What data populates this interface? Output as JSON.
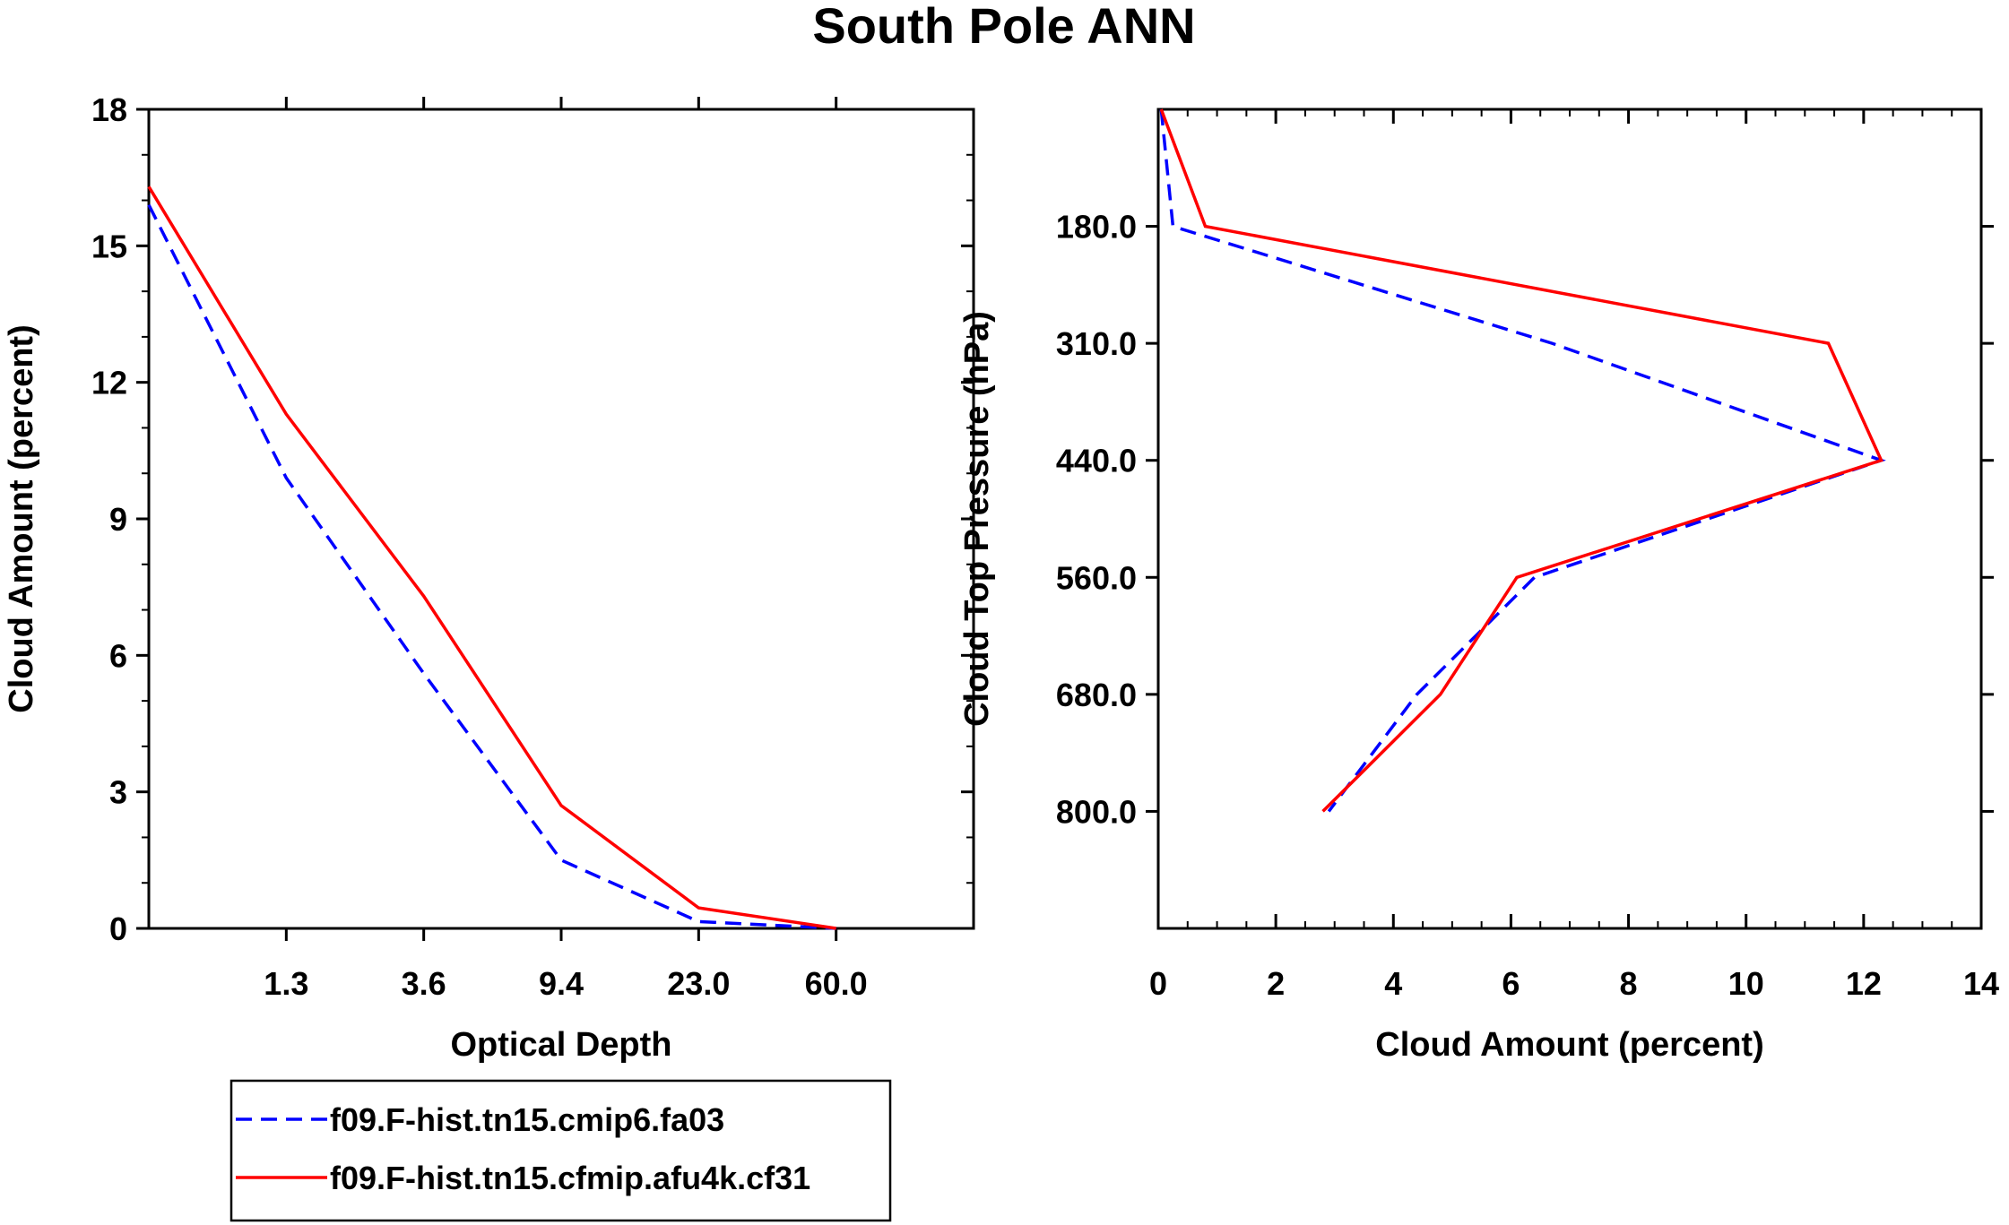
{
  "title": "South Pole ANN",
  "legend": {
    "entries": [
      {
        "label": "f09.F-hist.tn15.cmip6.fa03",
        "color": "#0000ff",
        "style": "dashed"
      },
      {
        "label": "f09.F-hist.tn15.cfmip.afu4k.cf31",
        "color": "#ff0000",
        "style": "solid"
      }
    ]
  },
  "chart_data": [
    {
      "type": "line",
      "name": "optical-depth-panel",
      "xlabel": "Optical Depth",
      "ylabel": "Cloud Amount (percent)",
      "x_ticklabels": [
        "1.3",
        "3.6",
        "9.4",
        "23.0",
        "60.0"
      ],
      "y_ticklabels": [
        "0",
        "3",
        "6",
        "9",
        "12",
        "15",
        "18"
      ],
      "x_bins": [
        0,
        1,
        2,
        3,
        4,
        5,
        6
      ],
      "xlim": [
        0,
        6
      ],
      "ylim": [
        0,
        18
      ],
      "series": [
        {
          "name": "f09.F-hist.tn15.cmip6.fa03",
          "color": "#0000ff",
          "dashed": true,
          "values": [
            15.9,
            9.9,
            5.6,
            1.5,
            0.15,
            0.0
          ]
        },
        {
          "name": "f09.F-hist.tn15.cfmip.afu4k.cf31",
          "color": "#ff0000",
          "dashed": false,
          "values": [
            16.3,
            11.3,
            7.3,
            2.7,
            0.45,
            0.0
          ]
        }
      ]
    },
    {
      "type": "line",
      "name": "pressure-panel",
      "xlabel": "Cloud Amount (percent)",
      "ylabel": "Cloud Top Pressure (hPa)",
      "x_ticklabels": [
        "0",
        "2",
        "4",
        "6",
        "8",
        "10",
        "12",
        "14"
      ],
      "y_ticklabels": [
        "180.0",
        "310.0",
        "440.0",
        "560.0",
        "680.0",
        "800.0"
      ],
      "y_bins": [
        0,
        1,
        2,
        3,
        4,
        5,
        6,
        7
      ],
      "ylim": [
        0,
        7
      ],
      "xlim": [
        0,
        14
      ],
      "series": [
        {
          "name": "f09.F-hist.tn15.cmip6.fa03",
          "color": "#0000ff",
          "dashed": true,
          "values": [
            0.05,
            0.25,
            6.7,
            12.3,
            6.4,
            4.4,
            2.9
          ]
        },
        {
          "name": "f09.F-hist.tn15.cfmip.afu4k.cf31",
          "color": "#ff0000",
          "dashed": false,
          "values": [
            0.05,
            0.8,
            11.4,
            12.3,
            6.1,
            4.8,
            2.8
          ]
        }
      ]
    }
  ]
}
